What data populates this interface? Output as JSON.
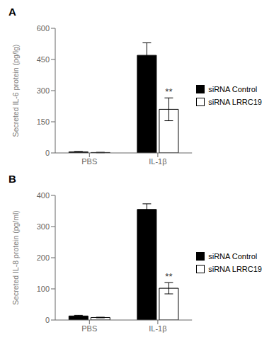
{
  "chart_data": [
    {
      "type": "bar",
      "title": "A",
      "y_label": "Secreted IL-6 protein (pg/lg)",
      "categories": [
        "PBS",
        "IL-1β"
      ],
      "series": [
        {
          "name": "siRNA Control",
          "color": "black",
          "values": [
            5,
            470
          ],
          "errors": [
            2,
            60
          ]
        },
        {
          "name": "siRNA LRRC19",
          "color": "white",
          "values": [
            2,
            210
          ],
          "errors": [
            1,
            55
          ]
        }
      ],
      "annotations": [
        {
          "category": "IL-1β",
          "series": "siRNA LRRC19",
          "text": "**"
        }
      ],
      "ylim": [
        0,
        600
      ],
      "yticks": [
        0,
        150,
        300,
        450,
        600
      ],
      "grid": false,
      "legend": "right"
    },
    {
      "type": "bar",
      "title": "B",
      "y_label": "Secreted IL-8 protein (pg/ml)",
      "categories": [
        "PBS",
        "IL-1β"
      ],
      "series": [
        {
          "name": "siRNA Control",
          "color": "black",
          "values": [
            13,
            355
          ],
          "errors": [
            2,
            18
          ]
        },
        {
          "name": "siRNA LRRC19",
          "color": "white",
          "values": [
            8,
            102
          ],
          "errors": [
            1,
            18
          ]
        }
      ],
      "annotations": [
        {
          "category": "IL-1β",
          "series": "siRNA LRRC19",
          "text": "**"
        }
      ],
      "ylim": [
        0,
        400
      ],
      "yticks": [
        0,
        100,
        200,
        300,
        400
      ],
      "grid": false,
      "legend": "right"
    }
  ]
}
